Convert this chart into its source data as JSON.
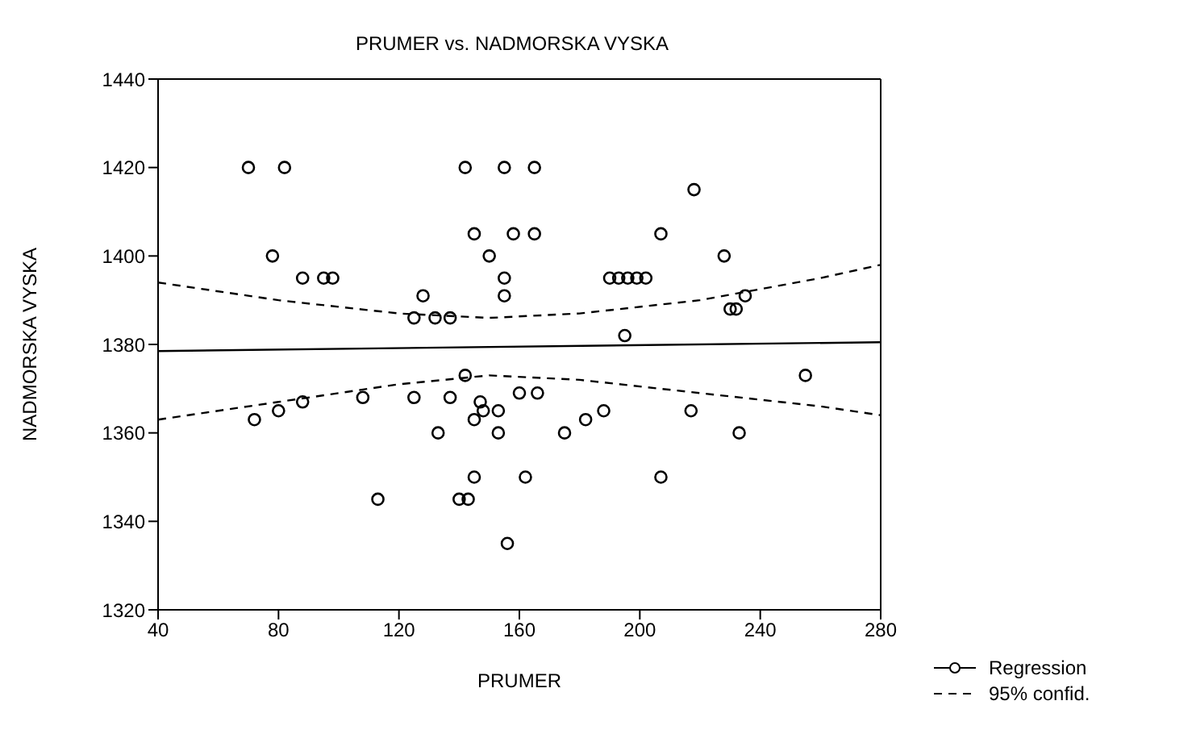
{
  "chart_data": {
    "type": "scatter",
    "title": "PRUMER vs. NADMORSKA VYSKA",
    "xlabel": "PRUMER",
    "ylabel": "NADMORSKA VYSKA",
    "xlim": [
      40,
      280
    ],
    "xticks": [
      40,
      80,
      120,
      160,
      200,
      240,
      280
    ],
    "ylim": [
      1320,
      1440
    ],
    "yticks": [
      1320,
      1340,
      1360,
      1380,
      1400,
      1420,
      1440
    ],
    "grid": false,
    "legend": "bottom right",
    "series": [
      {
        "color": "#000000",
        "marker": "circle",
        "x": [
          70,
          82,
          142,
          155,
          165,
          78,
          145,
          150,
          158,
          165,
          207,
          218,
          228,
          88,
          95,
          98,
          155,
          190,
          193,
          196,
          199,
          202,
          128,
          155,
          230,
          232,
          235,
          125,
          132,
          137,
          195,
          142,
          255,
          72,
          80,
          88,
          108,
          125,
          137,
          147,
          148,
          145,
          153,
          160,
          166,
          188,
          182,
          175,
          217,
          233,
          133,
          153,
          145,
          162,
          207,
          113,
          140,
          143,
          156
        ],
        "values": [
          1420,
          1420,
          1420,
          1420,
          1420,
          1400,
          1405,
          1400,
          1405,
          1405,
          1405,
          1415,
          1400,
          1395,
          1395,
          1395,
          1395,
          1395,
          1395,
          1395,
          1395,
          1395,
          1391,
          1391,
          1388,
          1388,
          1391,
          1386,
          1386,
          1386,
          1382,
          1373,
          1373,
          1363,
          1365,
          1367,
          1368,
          1368,
          1368,
          1367,
          1365,
          1363,
          1365,
          1369,
          1369,
          1365,
          1363,
          1360,
          1365,
          1360,
          1360,
          1360,
          1350,
          1350,
          1350,
          1345,
          1345,
          1345,
          1335
        ]
      },
      {
        "type": "line",
        "name": "Regression",
        "color": "#000000",
        "line_style": "solid",
        "x": [
          40,
          280
        ],
        "values": [
          1378.5,
          1380.5
        ]
      },
      {
        "type": "line",
        "name": "95% confid.",
        "color": "#000000",
        "line_style": "dashed",
        "x": [
          40,
          80,
          120,
          150,
          180,
          220,
          260,
          280
        ],
        "values": [
          1394,
          1390,
          1387,
          1386,
          1387,
          1390,
          1395,
          1398
        ]
      },
      {
        "type": "line",
        "color": "#000000",
        "line_style": "dashed",
        "x": [
          40,
          80,
          120,
          150,
          180,
          220,
          260,
          280
        ],
        "values": [
          1363,
          1367,
          1371,
          1373,
          1372,
          1369,
          1366,
          1364
        ]
      }
    ]
  }
}
